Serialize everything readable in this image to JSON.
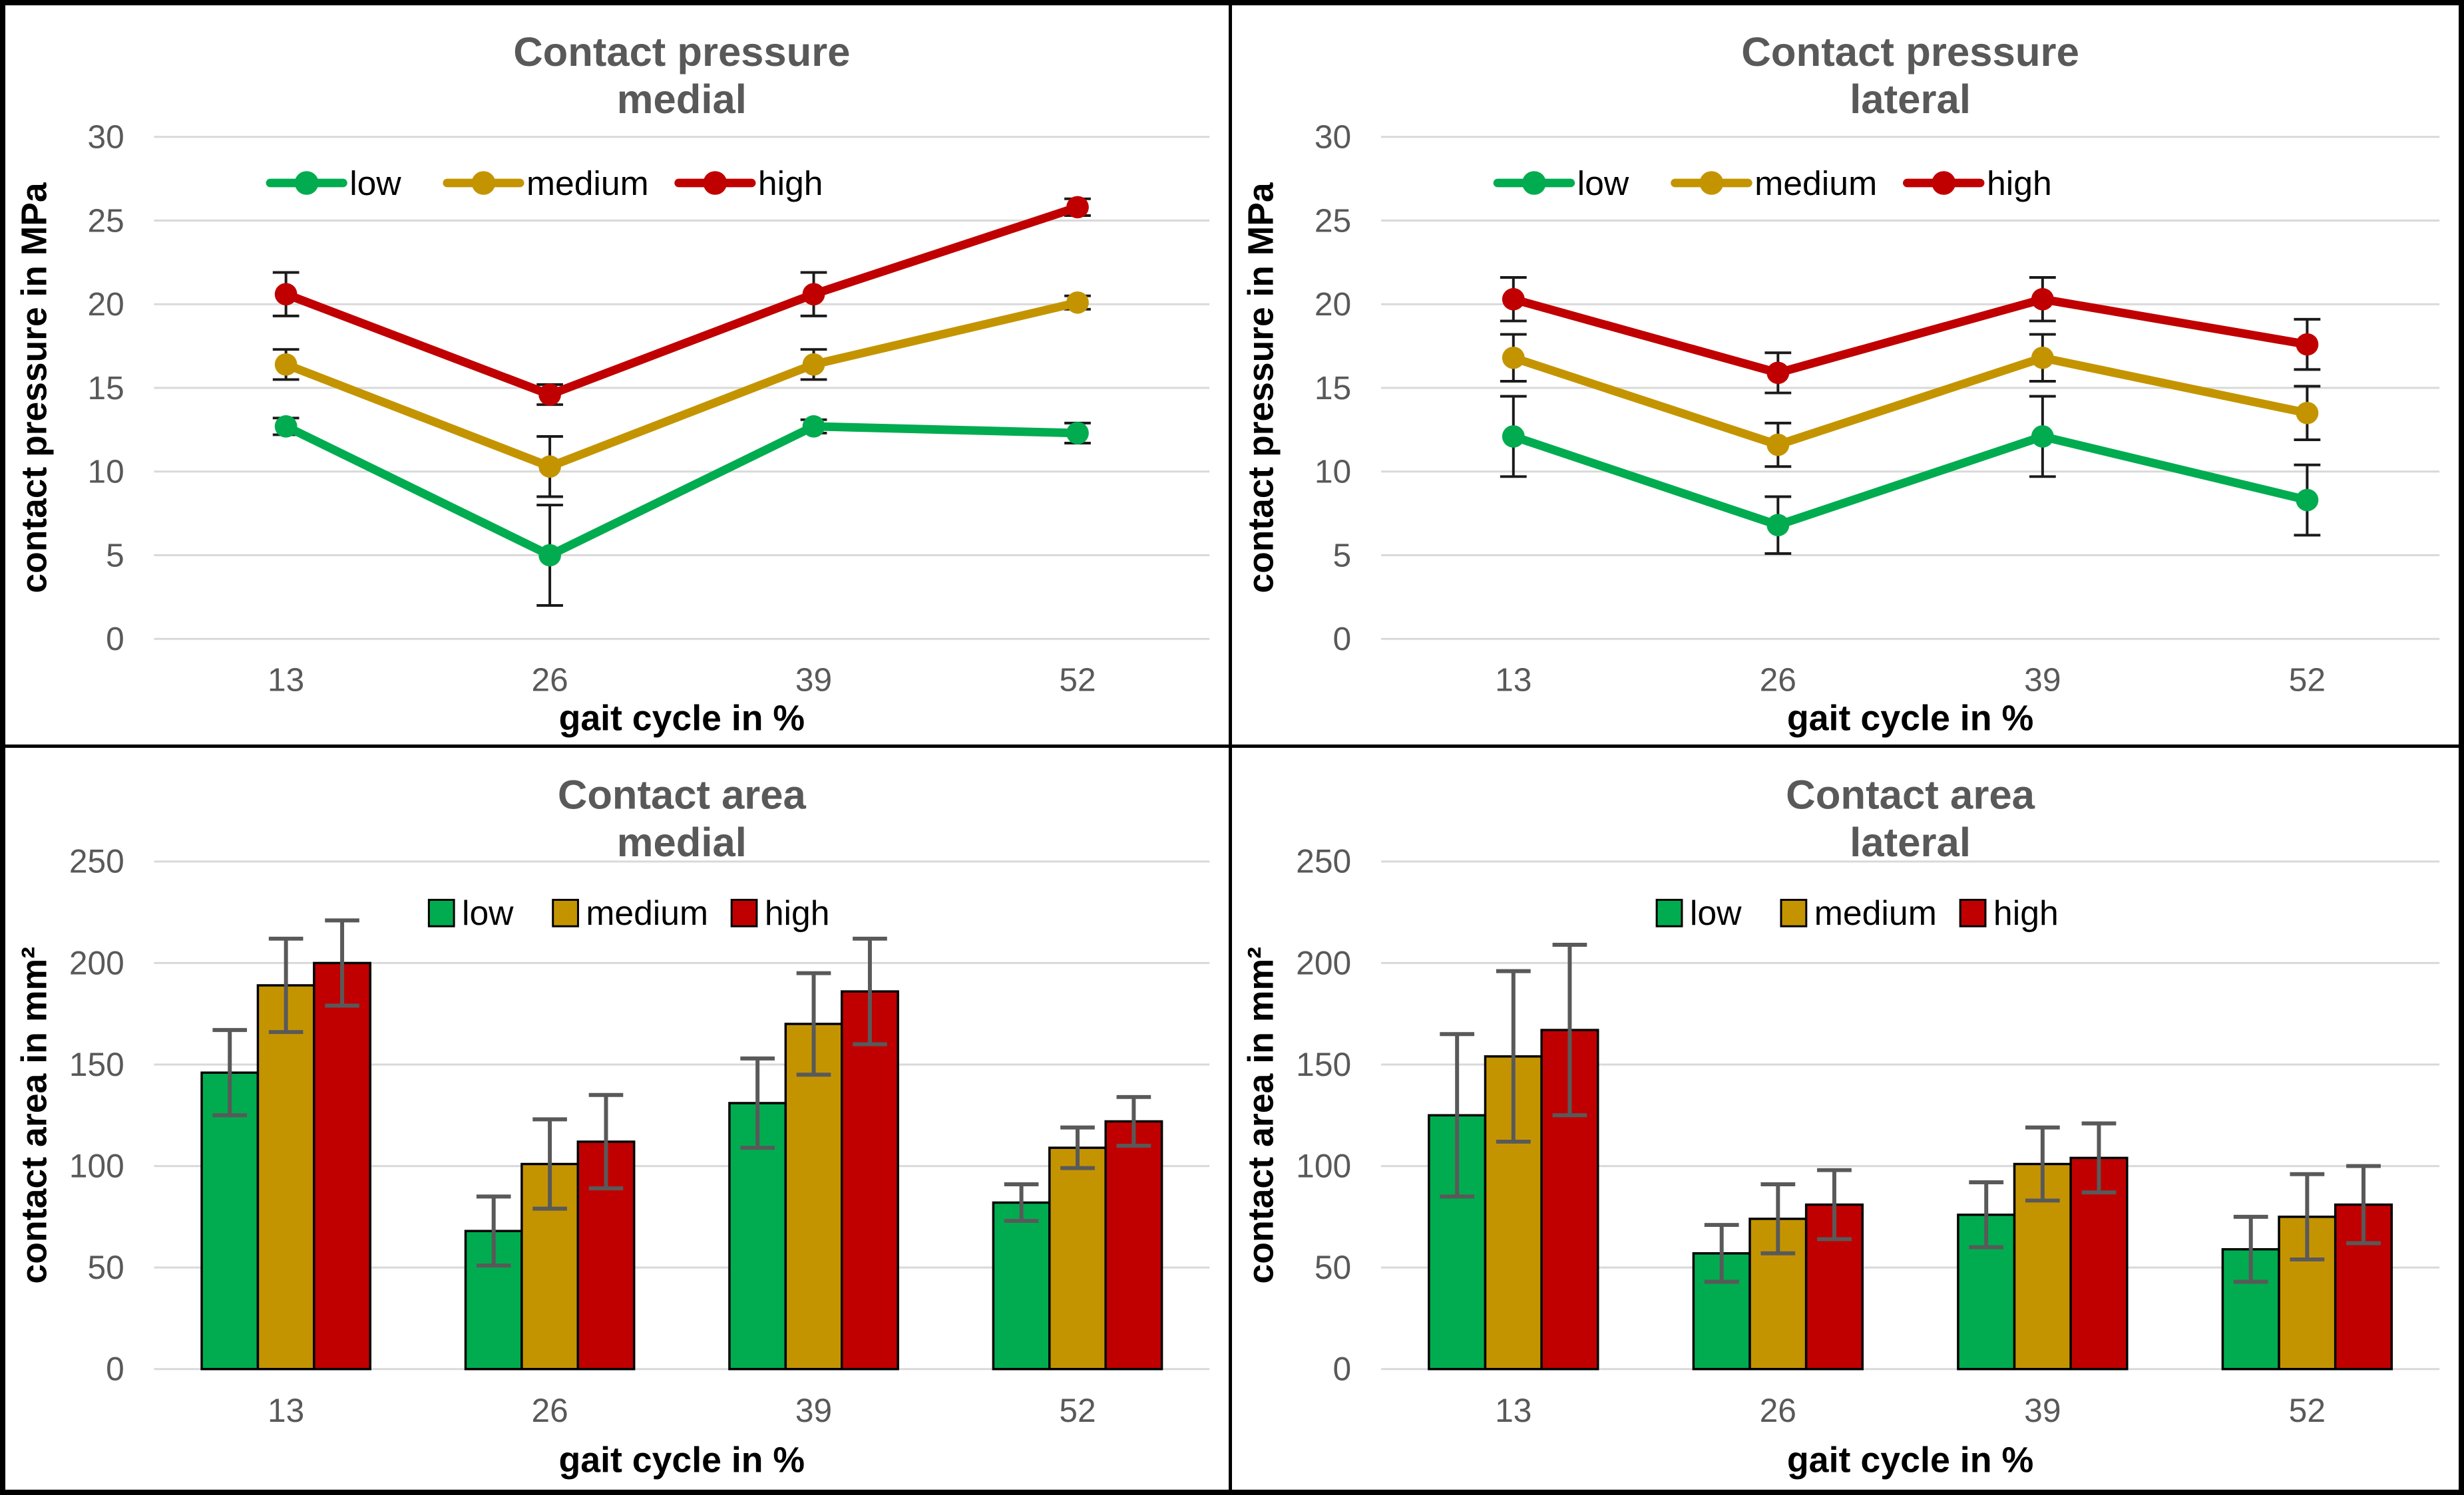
{
  "styles": {
    "background": "#ffffff",
    "panel_border": "#000000",
    "title_color": "#595959",
    "tick_color": "#595959",
    "axis_label_color": "#000000",
    "legend_text_color": "#000000",
    "grid_color": "#D9D9D9",
    "errorbar_color_line_chart": "#1a1a1a",
    "errorbar_color_bar_chart": "#595959",
    "bar_border_color": "#000000",
    "series_colors": {
      "green": "#00AC4F",
      "gold": "#C49400",
      "red": "#C00000"
    }
  },
  "chart_data": [
    {
      "id": "contact-pressure-medial",
      "type": "line",
      "title": [
        "Contact pressure",
        "medial"
      ],
      "ylabel": "contact pressure in MPa",
      "xlabel": "gait cycle in %",
      "ylim": [
        0,
        30
      ],
      "yticks": [
        0,
        5,
        10,
        15,
        20,
        25,
        30
      ],
      "grid": true,
      "legend_position": "top-inside",
      "categories": [
        "13",
        "26",
        "39",
        "52"
      ],
      "series": [
        {
          "name": "low",
          "color": "green",
          "values": [
            12.7,
            5.0,
            12.7,
            12.3
          ],
          "errors": [
            0.5,
            3.0,
            0.4,
            0.6
          ]
        },
        {
          "name": "medium",
          "color": "gold",
          "values": [
            16.4,
            10.3,
            16.4,
            20.1
          ],
          "errors": [
            0.9,
            1.8,
            0.9,
            0.4
          ]
        },
        {
          "name": "high",
          "color": "red",
          "values": [
            20.6,
            14.6,
            20.6,
            25.8
          ],
          "errors": [
            1.3,
            0.6,
            1.3,
            0.5
          ]
        }
      ]
    },
    {
      "id": "contact-pressure-lateral",
      "type": "line",
      "title": [
        "Contact pressure",
        "lateral"
      ],
      "ylabel": "contact pressure in MPa",
      "xlabel": "gait cycle in %",
      "ylim": [
        0,
        30
      ],
      "yticks": [
        0,
        5,
        10,
        15,
        20,
        25,
        30
      ],
      "grid": true,
      "legend_position": "top-inside",
      "categories": [
        "13",
        "26",
        "39",
        "52"
      ],
      "series": [
        {
          "name": "low",
          "color": "green",
          "values": [
            12.1,
            6.8,
            12.1,
            8.3
          ],
          "errors": [
            2.4,
            1.7,
            2.4,
            2.1
          ]
        },
        {
          "name": "medium",
          "color": "gold",
          "values": [
            16.8,
            11.6,
            16.8,
            13.5
          ],
          "errors": [
            1.4,
            1.3,
            1.4,
            1.6
          ]
        },
        {
          "name": "high",
          "color": "red",
          "values": [
            20.3,
            15.9,
            20.3,
            17.6
          ],
          "errors": [
            1.3,
            1.2,
            1.3,
            1.5
          ]
        }
      ]
    },
    {
      "id": "contact-area-medial",
      "type": "bar",
      "title": [
        "Contact area",
        "medial"
      ],
      "ylabel": "contact area in mm²",
      "xlabel": "gait cycle in %",
      "ylim": [
        0,
        250
      ],
      "yticks": [
        0,
        50,
        100,
        150,
        200,
        250
      ],
      "grid": true,
      "legend_position": "top-inside",
      "categories": [
        "13",
        "26",
        "39",
        "52"
      ],
      "series": [
        {
          "name": "low",
          "color": "green",
          "values": [
            146,
            68,
            131,
            82
          ],
          "errors": [
            21,
            17,
            22,
            9
          ]
        },
        {
          "name": "medium",
          "color": "gold",
          "values": [
            189,
            101,
            170,
            109
          ],
          "errors": [
            23,
            22,
            25,
            10
          ]
        },
        {
          "name": "high",
          "color": "red",
          "values": [
            200,
            112,
            186,
            122
          ],
          "errors": [
            21,
            23,
            26,
            12
          ]
        }
      ]
    },
    {
      "id": "contact-area-lateral",
      "type": "bar",
      "title": [
        "Contact area",
        "lateral"
      ],
      "ylabel": "contact area in mm²",
      "xlabel": "gait cycle in %",
      "ylim": [
        0,
        250
      ],
      "yticks": [
        0,
        50,
        100,
        150,
        200,
        250
      ],
      "grid": true,
      "legend_position": "top-inside",
      "categories": [
        "13",
        "26",
        "39",
        "52"
      ],
      "series": [
        {
          "name": "low",
          "color": "green",
          "values": [
            125,
            57,
            76,
            59
          ],
          "errors": [
            40,
            14,
            16,
            16
          ]
        },
        {
          "name": "medium",
          "color": "gold",
          "values": [
            154,
            74,
            101,
            75
          ],
          "errors": [
            42,
            17,
            18,
            21
          ]
        },
        {
          "name": "high",
          "color": "red",
          "values": [
            167,
            81,
            104,
            81
          ],
          "errors": [
            42,
            17,
            17,
            19
          ]
        }
      ]
    }
  ]
}
